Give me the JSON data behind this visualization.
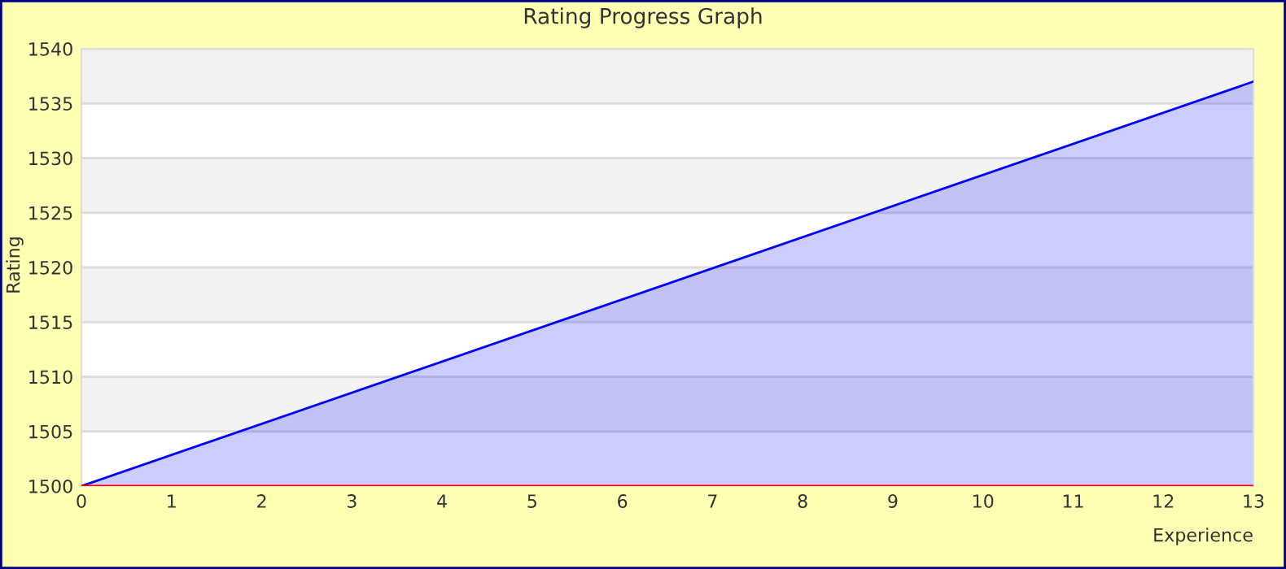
{
  "chart_data": {
    "type": "area",
    "title": "Rating Progress Graph",
    "xlabel": "Experience",
    "ylabel": "Rating",
    "x": [
      0,
      13
    ],
    "series": [
      {
        "color": "#0000ff",
        "values": [
          1500,
          1537
        ]
      }
    ],
    "xlim": [
      0,
      13
    ],
    "xticks": [
      0,
      1,
      2,
      3,
      4,
      5,
      6,
      7,
      8,
      9,
      10,
      11,
      12,
      13
    ],
    "ylim": [
      1500,
      1540
    ],
    "yticks": [
      1500,
      1505,
      1510,
      1515,
      1520,
      1525,
      1530,
      1535,
      1540
    ],
    "ref_lines": [
      {
        "axis": "y",
        "value": 1500,
        "color": "#ff0000"
      }
    ],
    "grid": "y",
    "legend": false
  }
}
